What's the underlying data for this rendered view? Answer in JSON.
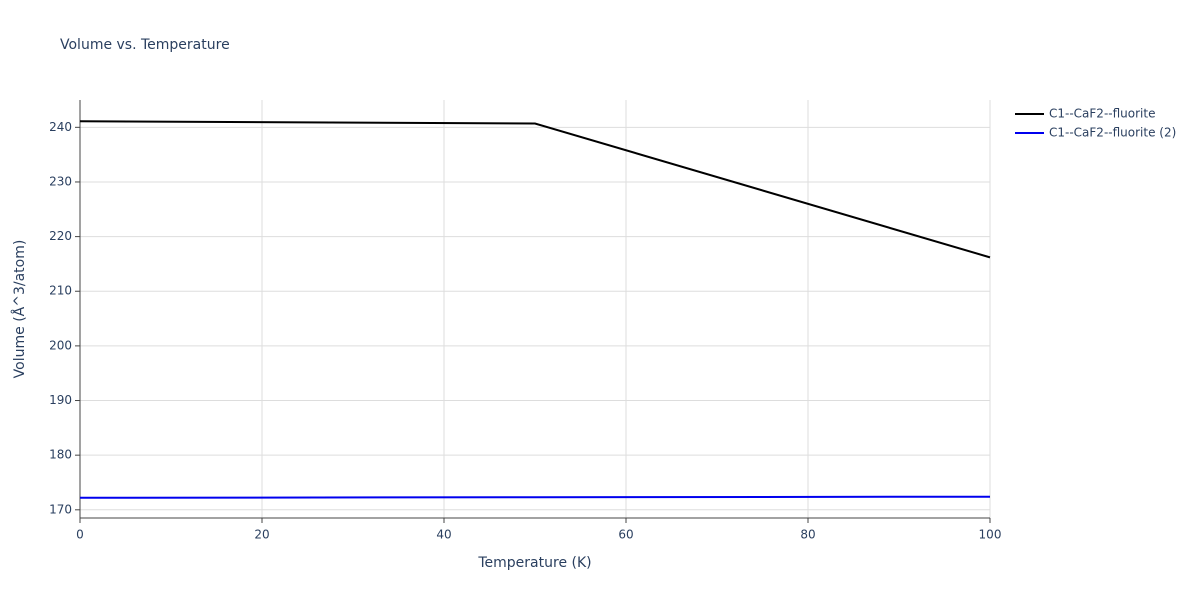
{
  "chart_data": {
    "type": "line",
    "title": "Volume vs. Temperature",
    "x_label": "Temperature (K)",
    "y_label": "Volume (Å^3/atom)",
    "x": [
      0,
      50,
      100
    ],
    "series": [
      {
        "name": "C1--CaF2--fluorite",
        "color": "#000000",
        "values": [
          241.1,
          240.7,
          216.2
        ]
      },
      {
        "name": "C1--CaF2--fluorite (2)",
        "color": "#0000ee",
        "values": [
          172.2,
          172.3,
          172.4
        ]
      }
    ],
    "xlim": [
      0,
      100
    ],
    "xticks": [
      0,
      20,
      40,
      60,
      80,
      100
    ],
    "ylim": [
      168.5,
      245
    ],
    "yticks": [
      170,
      180,
      190,
      200,
      210,
      220,
      230,
      240
    ],
    "grid": true,
    "legend": "top-right"
  }
}
